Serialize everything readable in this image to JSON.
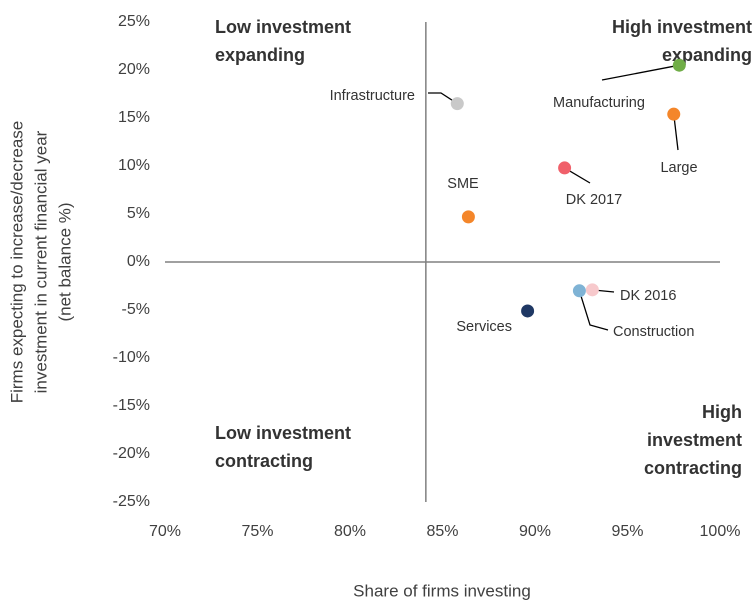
{
  "chart_data": {
    "type": "scatter",
    "xlabel": "Share of firms investing",
    "ylabel": [
      "Firms expecting to increase/decrease",
      "investment in current financial year",
      "(net balance %)"
    ],
    "xlim": [
      70,
      100
    ],
    "xticks": [
      {
        "value": 70,
        "label": "70%"
      },
      {
        "value": 75,
        "label": "75%"
      },
      {
        "value": 80,
        "label": "80%"
      },
      {
        "value": 85,
        "label": "85%"
      },
      {
        "value": 90,
        "label": "90%"
      },
      {
        "value": 95,
        "label": "95%"
      },
      {
        "value": 100,
        "label": "100%"
      }
    ],
    "ylim": [
      -25,
      25
    ],
    "yticks": [
      {
        "value": -25,
        "label": "-25%"
      },
      {
        "value": -20,
        "label": "-20%"
      },
      {
        "value": -15,
        "label": "-15%"
      },
      {
        "value": -10,
        "label": "-10%"
      },
      {
        "value": -5,
        "label": "-5%"
      },
      {
        "value": 0,
        "label": "0%"
      },
      {
        "value": 5,
        "label": "5%"
      },
      {
        "value": 10,
        "label": "10%"
      },
      {
        "value": 15,
        "label": "15%"
      },
      {
        "value": 20,
        "label": "20%"
      },
      {
        "value": 25,
        "label": "25%"
      }
    ],
    "quadrant_x": 84.1,
    "quadrants": {
      "top_left": [
        "Low investment",
        "expanding"
      ],
      "top_right": [
        "High investment",
        "expanding"
      ],
      "bottom_left": [
        "Low investment",
        "contracting"
      ],
      "bottom_right": [
        "High",
        "investment",
        "contracting"
      ]
    },
    "points": [
      {
        "label": "Infrastructure",
        "color": "#c9c9c9",
        "x": 85.8,
        "y": 16.5
      },
      {
        "label": "Manufacturing",
        "color": "#70ad47",
        "x": 97.8,
        "y": 20.5
      },
      {
        "label": "Large",
        "color": "#f4862a",
        "x": 97.5,
        "y": 15.4
      },
      {
        "label": "DK 2017",
        "color": "#f0606a",
        "x": 91.6,
        "y": 9.8
      },
      {
        "label": "SME",
        "color": "#f4862a",
        "x": 86.4,
        "y": 4.7
      },
      {
        "label": "DK 2016",
        "color": "#f7c9cc",
        "x": 93.1,
        "y": -2.9
      },
      {
        "label": "Construction",
        "color": "#7fb3d5",
        "x": 92.4,
        "y": -3.0
      },
      {
        "label": "Services",
        "color": "#1f3864",
        "x": 89.6,
        "y": -5.1
      }
    ]
  }
}
